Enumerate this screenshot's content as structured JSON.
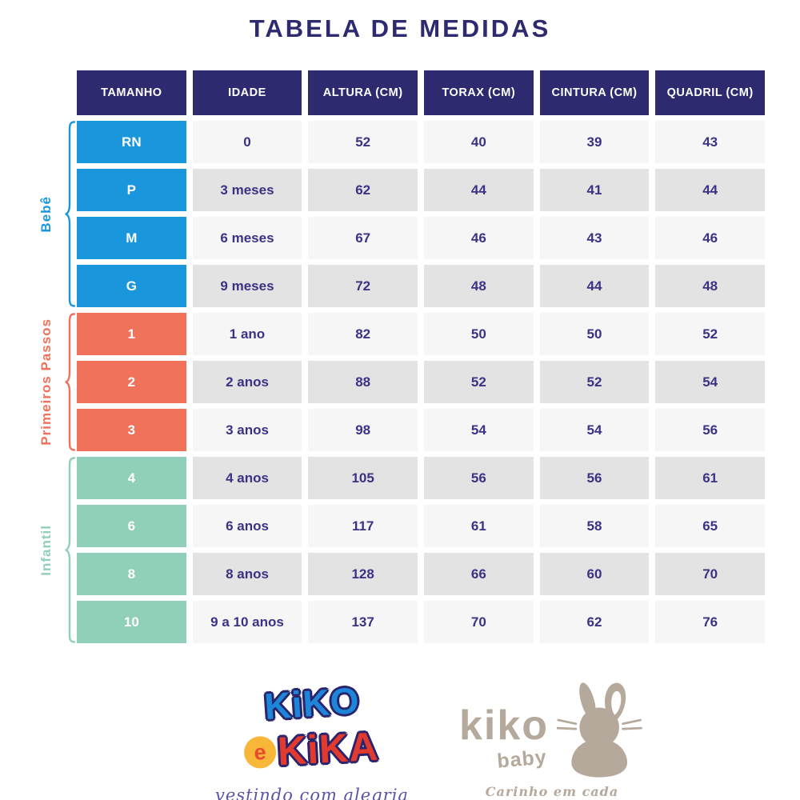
{
  "title": "TABELA DE MEDIDAS",
  "table": {
    "headers": [
      "TAMANHO",
      "IDADE",
      "ALTURA (CM)",
      "TORAX (CM)",
      "CINTURA (CM)",
      "QUADRIL (CM)"
    ],
    "groups": [
      {
        "label": "Bebê",
        "color": "#1a96dc",
        "rows": [
          {
            "size": "RN",
            "age": "0",
            "altura": "52",
            "torax": "40",
            "cintura": "39",
            "quadril": "43"
          },
          {
            "size": "P",
            "age": "3 meses",
            "altura": "62",
            "torax": "44",
            "cintura": "41",
            "quadril": "44"
          },
          {
            "size": "M",
            "age": "6 meses",
            "altura": "67",
            "torax": "46",
            "cintura": "43",
            "quadril": "46"
          },
          {
            "size": "G",
            "age": "9 meses",
            "altura": "72",
            "torax": "48",
            "cintura": "44",
            "quadril": "48"
          }
        ]
      },
      {
        "label": "Primeiros Passos",
        "color": "#f0725a",
        "rows": [
          {
            "size": "1",
            "age": "1 ano",
            "altura": "82",
            "torax": "50",
            "cintura": "50",
            "quadril": "52"
          },
          {
            "size": "2",
            "age": "2 anos",
            "altura": "88",
            "torax": "52",
            "cintura": "52",
            "quadril": "54"
          },
          {
            "size": "3",
            "age": "3 anos",
            "altura": "98",
            "torax": "54",
            "cintura": "54",
            "quadril": "56"
          }
        ]
      },
      {
        "label": "Infantil",
        "color": "#90d0b8",
        "rows": [
          {
            "size": "4",
            "age": "4 anos",
            "altura": "105",
            "torax": "56",
            "cintura": "56",
            "quadril": "61"
          },
          {
            "size": "6",
            "age": "6 anos",
            "altura": "117",
            "torax": "61",
            "cintura": "58",
            "quadril": "65"
          },
          {
            "size": "8",
            "age": "8 anos",
            "altura": "128",
            "torax": "66",
            "cintura": "60",
            "quadril": "70"
          },
          {
            "size": "10",
            "age": "9 a 10 anos",
            "altura": "137",
            "torax": "70",
            "cintura": "62",
            "quadril": "76"
          }
        ]
      }
    ]
  },
  "footer": {
    "logo_left": {
      "word1": "KiKO",
      "connector": "e",
      "word2": "KiKA",
      "tagline": "vestindo com alegria"
    },
    "logo_right": {
      "name": "kiko",
      "sub": "baby",
      "tagline": "Carinho em cada pedacinho"
    }
  },
  "colors": {
    "title_text": "#2e2a70",
    "header_bg": "#2e2a70",
    "cell_text": "#3a3285",
    "row_light": "#f6f6f6",
    "row_alt": "#e3e3e3",
    "group_bebe": "#1a96dc",
    "group_primeiros_passos": "#f0725a",
    "group_infantil": "#90d0b8",
    "logo_taupe": "#b5a99c",
    "logo_blue": "#1d86d8",
    "logo_red": "#e23a2e",
    "logo_yellow": "#f9b73a",
    "tagline_purple": "#5b54a6"
  }
}
